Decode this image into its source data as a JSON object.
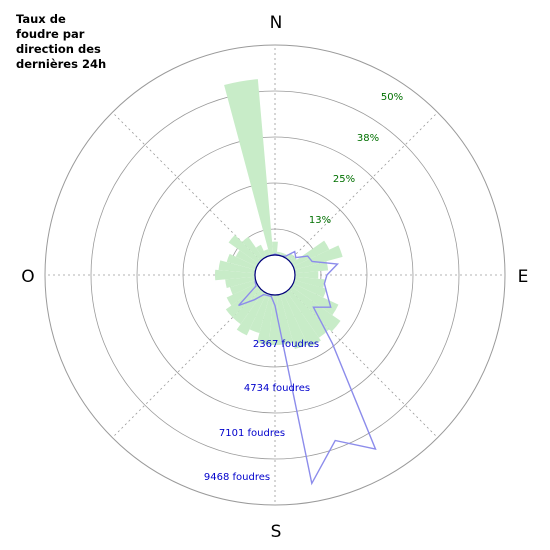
{
  "title_lines": [
    "Taux de",
    "foudre par",
    "direction des",
    "dernières 24h"
  ],
  "compass": {
    "north": "N",
    "east": "E",
    "south": "S",
    "west": "O"
  },
  "colors": {
    "bars": "#c8ecc8",
    "line": "#8c8ceb",
    "pct_labels": "#007000",
    "count_labels": "#0000cc",
    "grid": "#9a9a9a",
    "center": "#00007a"
  },
  "chart_data": {
    "type": "polar-bar-line",
    "title": "Taux de foudre par direction des dernières 24h",
    "angle_unit": "degrees clockwise from north",
    "sector_width_deg": 10,
    "radial_percent_ticks": [
      "13%",
      "25%",
      "38%",
      "50%"
    ],
    "radial_count_ticks": [
      "2367 foudres",
      "4734 foudres",
      "7101 foudres",
      "9468 foudres"
    ],
    "percent_scale_max": 63,
    "count_scale_max": 11835,
    "series": [
      {
        "name": "percentage",
        "kind": "bars",
        "sectors_deg": [
          0,
          10,
          20,
          30,
          40,
          50,
          60,
          70,
          80,
          90,
          100,
          110,
          120,
          130,
          140,
          150,
          160,
          170,
          180,
          190,
          200,
          210,
          220,
          230,
          240,
          250,
          260,
          270,
          280,
          290,
          300,
          310,
          320,
          330,
          340,
          350
        ],
        "values": [
          4,
          1,
          1,
          1,
          2,
          2,
          12,
          15,
          10,
          7,
          9,
          10,
          15,
          18,
          17,
          18,
          17,
          15,
          15,
          15,
          12,
          14,
          12,
          12,
          10,
          8,
          9,
          12,
          11,
          9,
          7,
          11,
          8,
          4,
          2,
          53
        ]
      },
      {
        "name": "counts",
        "kind": "line",
        "sectors_deg": [
          0,
          10,
          20,
          30,
          40,
          50,
          60,
          70,
          80,
          90,
          100,
          110,
          120,
          130,
          140,
          150,
          160,
          170,
          180,
          190,
          200,
          210,
          220,
          230,
          240,
          250,
          260,
          270,
          280,
          290,
          300,
          310,
          320,
          330,
          340,
          350
        ],
        "values": [
          50,
          20,
          0,
          100,
          600,
          400,
          1000,
          1100,
          2450,
          1800,
          1700,
          2000,
          2500,
          1700,
          3900,
          10200,
          8800,
          10800,
          600,
          100,
          100,
          150,
          700,
          1550,
          100,
          60,
          0,
          0,
          0,
          0,
          0,
          0,
          0,
          0,
          0,
          0
        ]
      }
    ],
    "grid": true,
    "legend": "none"
  }
}
